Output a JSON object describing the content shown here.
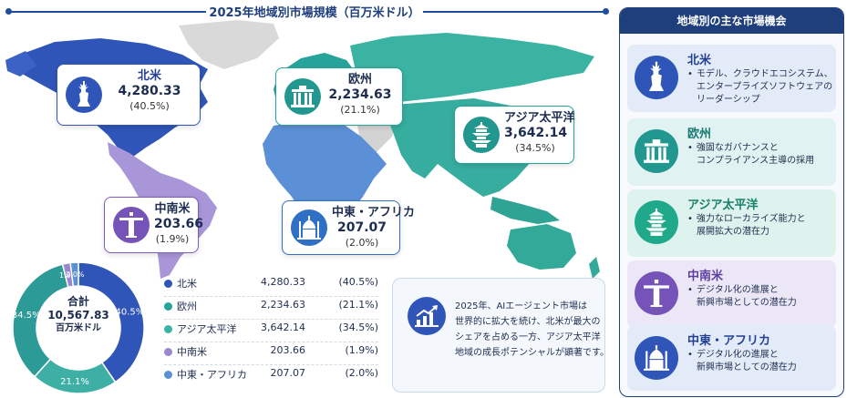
{
  "colors": {
    "north_america": "#2f55b8",
    "europe": "#26a39b",
    "asia_pacific": "#3bb3a3",
    "latin_america": "#9b86d0",
    "middle_east_africa": "#5b8fd6",
    "other_land": "#d8d8d8",
    "header_navy": "#1f3f7c"
  },
  "map": {
    "callouts": [
      {
        "key": "na",
        "name": "北米",
        "value": "4,280.33",
        "pct": "(40.5%)",
        "icon": "statue-of-liberty-icon"
      },
      {
        "key": "eu",
        "name": "欧州",
        "value": "2,234.63",
        "pct": "(21.1%)",
        "icon": "brandenburg-gate-icon"
      },
      {
        "key": "ap",
        "name": "アジア太平洋",
        "value": "3,642.14",
        "pct": "(34.5%)",
        "icon": "pagoda-icon"
      },
      {
        "key": "la",
        "name": "中南米",
        "value": "203.66",
        "pct": "(1.9%)",
        "icon": "christ-redeemer-icon"
      },
      {
        "key": "me",
        "name": "中東・アフリカ",
        "value": "207.07",
        "pct": "(2.0%)",
        "icon": "mosque-icon"
      }
    ]
  },
  "chart_data": {
    "type": "pie",
    "title": "2025年地域別市場規模（百万米ドル）",
    "categories": [
      "北米",
      "欧州",
      "アジア太平洋",
      "中南米",
      "中東・アフリカ"
    ],
    "values": [
      4280.33,
      2234.63,
      3642.14,
      203.66,
      207.07
    ],
    "value_labels": [
      "4,280.33",
      "2,234.63",
      "3,642.14",
      "203.66",
      "207.07"
    ],
    "percent_labels": [
      "(40.5%)",
      "(21.1%)",
      "(34.5%)",
      "(1.9%)",
      "(2.0%)"
    ],
    "slice_labels": [
      "40.5%",
      "21.1%",
      "34.5%",
      "1.9%",
      "2.0%"
    ],
    "slice_colors": [
      "#2f55b8",
      "#3dafa4",
      "#2c9a97",
      "#9b86d0",
      "#5b8fd6"
    ],
    "slice_order": [
      0,
      1,
      2,
      3,
      4
    ],
    "donut_start": "top-clockwise",
    "total_label": "合計",
    "total_value": "10,567.83",
    "total_unit": "百万米ドル",
    "legend_placement": "right"
  },
  "insight": {
    "icon": "bar-chart-growth-icon",
    "lines": [
      "2025年、AIエージェント市場は",
      "世界的に拡大を続け、北米が最大の",
      "シェアを占める一方、アジア太平洋",
      "地域の成長ポテンシャルが顕著です。"
    ]
  },
  "panel": {
    "header": "地域別の主な市場機会",
    "cards": [
      {
        "key": "na",
        "title": "北米",
        "icon": "statue-of-liberty-icon",
        "lines": [
          "モデル、クラウドエコシステム、",
          "エンタープライズソフトウェアの",
          "リーダーシップ"
        ]
      },
      {
        "key": "eu",
        "title": "欧州",
        "icon": "brandenburg-gate-icon",
        "lines": [
          "強固なガバナンスと",
          "コンプライアンス主導の採用"
        ]
      },
      {
        "key": "ap",
        "title": "アジア太平洋",
        "icon": "pagoda-icon",
        "lines": [
          "強力なローカライズ能力と",
          "展開拡大の潜在力"
        ]
      },
      {
        "key": "la",
        "title": "中南米",
        "icon": "christ-redeemer-icon",
        "lines": [
          "デジタル化の進展と",
          "新興市場としての潜在力"
        ]
      },
      {
        "key": "me",
        "title": "中東・アフリカ",
        "icon": "mosque-icon",
        "lines": [
          "デジタル化の進展と",
          "新興市場としての潜在力"
        ]
      }
    ]
  }
}
